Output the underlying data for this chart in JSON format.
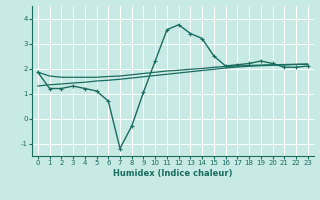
{
  "xlabel": "Humidex (Indice chaleur)",
  "ylabel": "",
  "background_color": "#c8eae4",
  "grid_color": "#ffffff",
  "line_color": "#1a6b60",
  "xlim": [
    -0.5,
    23.5
  ],
  "ylim": [
    -1.5,
    4.5
  ],
  "yticks": [
    -1,
    0,
    1,
    2,
    3,
    4
  ],
  "xticks": [
    0,
    1,
    2,
    3,
    4,
    5,
    6,
    7,
    8,
    9,
    10,
    11,
    12,
    13,
    14,
    15,
    16,
    17,
    18,
    19,
    20,
    21,
    22,
    23
  ],
  "curve1_x": [
    0,
    1,
    2,
    3,
    4,
    5,
    6,
    7,
    8,
    9,
    10,
    11,
    12,
    13,
    14,
    15,
    16,
    17,
    18,
    19,
    20,
    21,
    22,
    23
  ],
  "curve1_y": [
    1.85,
    1.2,
    1.2,
    1.3,
    1.2,
    1.1,
    0.7,
    -1.2,
    -0.3,
    1.05,
    2.3,
    3.55,
    3.75,
    3.4,
    3.2,
    2.5,
    2.1,
    2.15,
    2.2,
    2.3,
    2.2,
    2.05,
    2.05,
    2.1
  ],
  "curve2_x": [
    0,
    1,
    2,
    3,
    4,
    5,
    6,
    7,
    8,
    9,
    10,
    11,
    12,
    13,
    14,
    15,
    16,
    17,
    18,
    19,
    20,
    21,
    22,
    23
  ],
  "curve2_y": [
    1.85,
    1.7,
    1.65,
    1.65,
    1.65,
    1.65,
    1.68,
    1.7,
    1.75,
    1.8,
    1.85,
    1.9,
    1.93,
    1.97,
    2.0,
    2.05,
    2.08,
    2.1,
    2.12,
    2.14,
    2.15,
    2.16,
    2.17,
    2.18
  ],
  "curve3_x": [
    0,
    1,
    2,
    3,
    4,
    5,
    6,
    7,
    8,
    9,
    10,
    11,
    12,
    13,
    14,
    15,
    16,
    17,
    18,
    19,
    20,
    21,
    22,
    23
  ],
  "curve3_y": [
    1.3,
    1.35,
    1.38,
    1.42,
    1.45,
    1.5,
    1.53,
    1.57,
    1.62,
    1.67,
    1.72,
    1.77,
    1.82,
    1.87,
    1.92,
    1.97,
    2.02,
    2.06,
    2.09,
    2.11,
    2.13,
    2.14,
    2.16,
    2.17
  ]
}
